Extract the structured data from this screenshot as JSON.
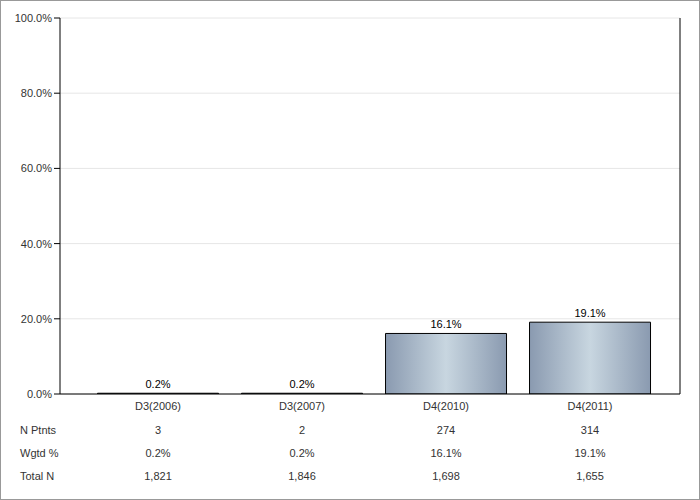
{
  "chart_data": {
    "type": "bar",
    "categories": [
      "D3(2006)",
      "D3(2007)",
      "D4(2010)",
      "D4(2011)"
    ],
    "values": [
      0.2,
      0.2,
      16.1,
      19.1
    ],
    "value_labels": [
      "0.2%",
      "0.2%",
      "16.1%",
      "19.1%"
    ],
    "data_labels": true,
    "color": "#c8d6e0",
    "ylim": [
      0,
      100
    ],
    "yticks": [
      {
        "value": 0,
        "label": "0.0%"
      },
      {
        "value": 20,
        "label": "20.0%"
      },
      {
        "value": 40,
        "label": "40.0%"
      },
      {
        "value": 60,
        "label": "60.0%"
      },
      {
        "value": 80,
        "label": "80.0%"
      },
      {
        "value": 100,
        "label": "100.0%"
      }
    ],
    "grid": true,
    "table": {
      "rows": [
        {
          "label": "N Ptnts",
          "values": [
            "3",
            "2",
            "274",
            "314"
          ]
        },
        {
          "label": "Wgtd %",
          "values": [
            "0.2%",
            "0.2%",
            "16.1%",
            "19.1%"
          ]
        },
        {
          "label": "Total N",
          "values": [
            "1,821",
            "1,846",
            "1,698",
            "1,655"
          ]
        }
      ]
    }
  }
}
